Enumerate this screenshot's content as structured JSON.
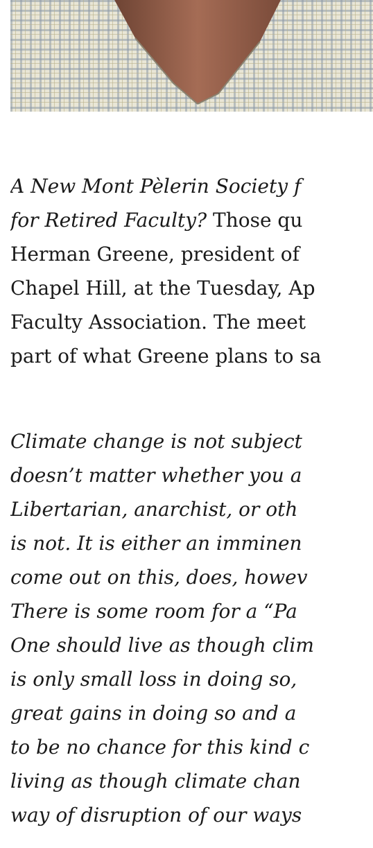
{
  "article": {
    "intro": {
      "title_lines": [
        "A New Mont Pèlerin Society f",
        "for Retired Faculty?"
      ],
      "lines": [
        " Those qu",
        "Herman Greene, president of",
        "Chapel Hill, at the Tuesday, Ap",
        "Faculty Association. The meet",
        "part of what Greene plans to sa"
      ]
    },
    "quote": {
      "lines": [
        "Climate change is not subject",
        "doesn’t matter whether you a",
        "Libertarian, anarchist, or oth",
        "is not. It is either an imminen",
        "come out on this, does, howev",
        "There is some room for a “Pa",
        "One should live as though clim",
        "is only small loss in doing so,",
        "great gains in doing so and a",
        "to be no chance for this kind c",
        "living as though climate chan",
        "way of disruption of our ways"
      ]
    }
  }
}
